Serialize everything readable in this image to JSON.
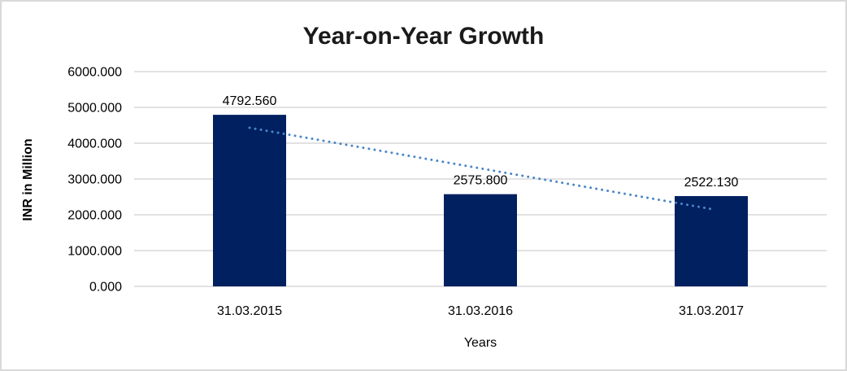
{
  "chart_data": {
    "type": "bar",
    "title": "Year-on-Year Growth",
    "xlabel": "Years",
    "ylabel": "INR in Million",
    "categories": [
      "31.03.2015",
      "31.03.2016",
      "31.03.2017"
    ],
    "values": [
      4792.56,
      2575.8,
      2522.13
    ],
    "data_labels": [
      "4792.560",
      "2575.800",
      "2522.130"
    ],
    "ylim": [
      0,
      6000
    ],
    "y_ticks": [
      {
        "value": 0,
        "label": "0.000"
      },
      {
        "value": 1000,
        "label": "1000.000"
      },
      {
        "value": 2000,
        "label": "2000.000"
      },
      {
        "value": 3000,
        "label": "3000.000"
      },
      {
        "value": 4000,
        "label": "4000.000"
      },
      {
        "value": 5000,
        "label": "5000.000"
      },
      {
        "value": 6000,
        "label": "6000.000"
      }
    ],
    "grid": "horizontal",
    "legend": "none",
    "colors": {
      "bar": "#002060",
      "gridline": "#d9d9d9",
      "trendline": "#4a86c8",
      "text": "#000000",
      "title": "#1a1a1a",
      "frame_border": "#d9d9d9",
      "background": "#ffffff"
    },
    "trendline": {
      "kind": "linear",
      "style": "dotted",
      "color": "#4a86c8",
      "start": {
        "category_index": 0,
        "value": 4432
      },
      "end": {
        "category_index": 2,
        "value": 2162
      }
    }
  }
}
